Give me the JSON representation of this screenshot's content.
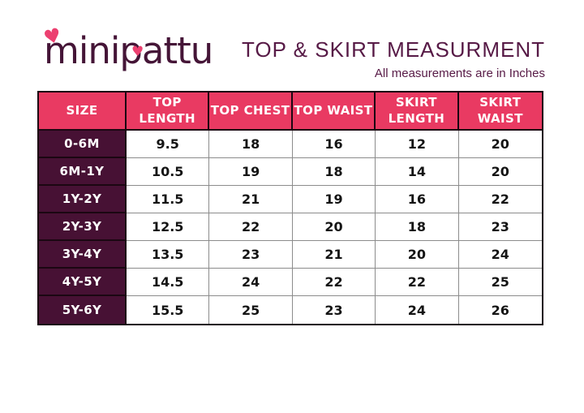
{
  "logo": {
    "text": "minipattu"
  },
  "header": {
    "title": "TOP & SKIRT MEASURMENT",
    "subtitle": "All measurements are in Inches"
  },
  "table": {
    "columns": [
      "SIZE",
      "TOP\nLENGTH",
      "TOP CHEST",
      "TOP WAIST",
      "SKIRT\nLENGTH",
      "SKIRT\nWAIST"
    ],
    "rows": [
      {
        "size": "0-6M",
        "values": [
          "9.5",
          "18",
          "16",
          "12",
          "20"
        ]
      },
      {
        "size": "6M-1Y",
        "values": [
          "10.5",
          "19",
          "18",
          "14",
          "20"
        ]
      },
      {
        "size": "1Y-2Y",
        "values": [
          "11.5",
          "21",
          "19",
          "16",
          "22"
        ]
      },
      {
        "size": "2Y-3Y",
        "values": [
          "12.5",
          "22",
          "20",
          "18",
          "23"
        ]
      },
      {
        "size": "3Y-4Y",
        "values": [
          "13.5",
          "23",
          "21",
          "20",
          "24"
        ]
      },
      {
        "size": "4Y-5Y",
        "values": [
          "14.5",
          "24",
          "22",
          "22",
          "25"
        ]
      },
      {
        "size": "5Y-6Y",
        "values": [
          "15.5",
          "25",
          "23",
          "24",
          "26"
        ]
      }
    ]
  },
  "colors": {
    "header_row_bg": "#e93a62",
    "size_column_bg": "#471134",
    "brand_text": "#451537",
    "title_text": "#571a46",
    "heart_pink": "#ec4070",
    "dark_border": "#1b0712",
    "light_border": "#8c8c8c"
  }
}
